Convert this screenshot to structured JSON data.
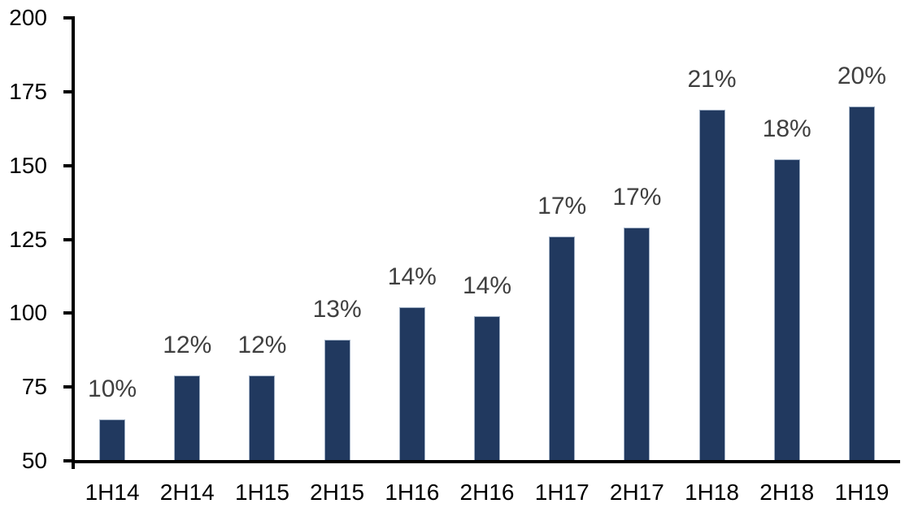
{
  "chart_data": {
    "type": "bar",
    "title": "",
    "xlabel": "",
    "ylabel": "",
    "categories": [
      "1H14",
      "2H14",
      "1H15",
      "2H15",
      "1H16",
      "2H16",
      "1H17",
      "2H17",
      "1H18",
      "2H18",
      "1H19"
    ],
    "values": [
      64,
      79,
      79,
      91,
      102,
      99,
      126,
      129,
      169,
      152,
      170
    ],
    "bar_labels": [
      "10%",
      "12%",
      "12%",
      "13%",
      "14%",
      "14%",
      "17%",
      "17%",
      "21%",
      "18%",
      "20%"
    ],
    "ylim": [
      50,
      200
    ],
    "yticks": [
      50,
      75,
      100,
      125,
      150,
      175,
      200
    ],
    "grid": false,
    "legend": false,
    "colors": {
      "bar_fill": "#21395F",
      "bar_border": "#9FAFC4",
      "data_label": "#3F3F3F",
      "axis_text": "#000000",
      "axis_line": "#000000",
      "background": "#FFFFFF"
    }
  }
}
